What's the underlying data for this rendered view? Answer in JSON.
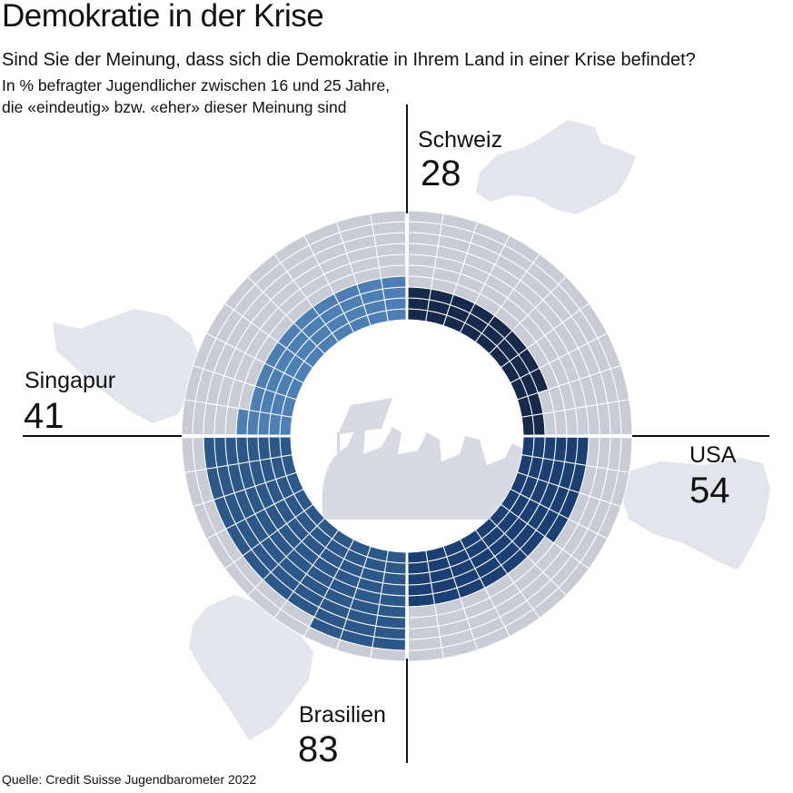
{
  "header": {
    "title": "Demokratie in der Krise",
    "subtitle": "Sind Sie der Meinung, dass sich die Demokratie in Ihrem Land in einer Krise befindet?",
    "note_line1": "In % befragter Jugendlicher zwischen 16 und 25 Jahre,",
    "note_line2": "die «eindeutig» bzw. «eher» dieser Meinung sind"
  },
  "chart_data": {
    "type": "radial-bar",
    "title": "Demokratie in der Krise",
    "unit": "%",
    "max": 100,
    "series": [
      {
        "category": "Schweiz",
        "value": 28,
        "color": "#16294a",
        "quadrant": "top-right"
      },
      {
        "category": "USA",
        "value": 54,
        "color": "#1b3f72",
        "quadrant": "bottom-right"
      },
      {
        "category": "Brasilien",
        "value": 83,
        "color": "#2c5789",
        "quadrant": "bottom-left"
      },
      {
        "category": "Singapur",
        "value": 41,
        "color": "#4d7fb5",
        "quadrant": "top-left"
      }
    ],
    "background_color": "#c9ccd5",
    "grid_color": "#ffffff"
  },
  "footer": {
    "source_label": "Quelle:",
    "source_text": "Credit Suisse Jugendbarometer 2022"
  }
}
